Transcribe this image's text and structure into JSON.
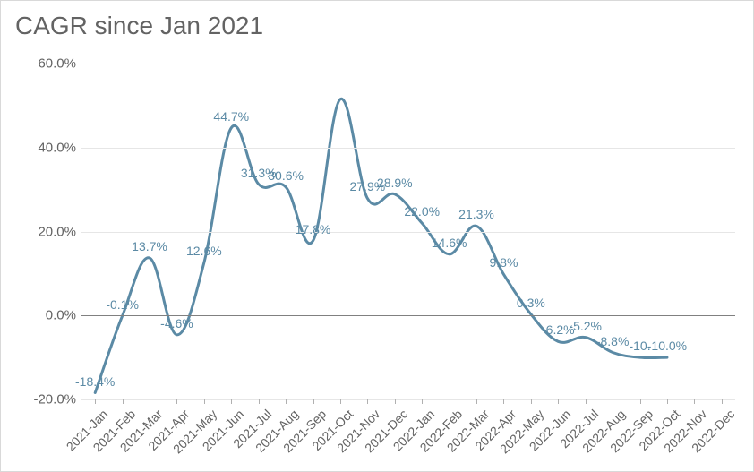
{
  "chart": {
    "type": "line",
    "title": "CAGR since Jan 2021",
    "title_fontsize": 28,
    "title_color": "#636363",
    "background_color": "#ffffff",
    "border_color": "#d9d9d9",
    "grid_color": "#e6e6e6",
    "zero_line_color": "#808080",
    "line_color": "#5b8aa5",
    "line_width": 3,
    "label_color": "#5b8aa5",
    "axis_label_color": "#636363",
    "axis_label_fontsize": 15,
    "data_label_fontsize": 14,
    "smooth": true,
    "y_axis": {
      "min": -20.0,
      "max": 60.0,
      "tick_step": 20.0,
      "tick_format": "percent1",
      "ticks": [
        "-20.0%",
        "0.0%",
        "20.0%",
        "40.0%",
        "60.0%"
      ]
    },
    "x_categories": [
      "2021-Jan",
      "2021-Feb",
      "2021-Mar",
      "2021-Apr",
      "2021-May",
      "2021-Jun",
      "2021-Jul",
      "2021-Aug",
      "2021-Sep",
      "2021-Oct",
      "2021-Nov",
      "2021-Dec",
      "2022-Jan",
      "2022-Feb",
      "2022-Mar",
      "2022-Apr",
      "2022-May",
      "2022-Jun",
      "2022-Jul",
      "2022-Aug",
      "2022-Sep",
      "2022-Oct",
      "2022-Nov",
      "2022-Dec"
    ],
    "series": [
      {
        "name": "CAGR",
        "values": [
          -18.4,
          -0.1,
          13.7,
          -4.6,
          12.6,
          44.7,
          31.3,
          30.6,
          17.8,
          51.5,
          27.9,
          28.9,
          22.0,
          14.6,
          21.3,
          9.8,
          0.3,
          -6.2,
          -5.2,
          -8.8,
          -10.0,
          -10.0,
          null,
          null
        ],
        "data_labels": [
          "-18.4%",
          "-0.1%",
          "13.7%",
          "-4.6%",
          "12.6%",
          "44.7%",
          "31.3%",
          "30.6%",
          "17.8%",
          "",
          "27.9%",
          "28.9%",
          "22.0%",
          "14.6%",
          "21.3%",
          "9.8%",
          "0.3%",
          "-6.2%",
          "-5.2%",
          "-8.8%",
          "-10.",
          "-10.0%",
          "",
          ""
        ]
      }
    ]
  }
}
